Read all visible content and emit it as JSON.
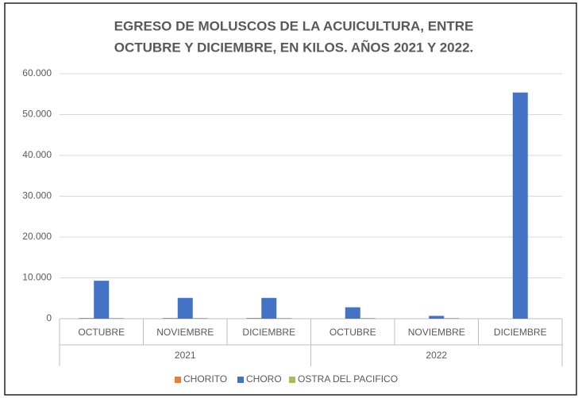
{
  "chart_data": {
    "type": "bar",
    "title": [
      "EGRESO DE MOLUSCOS DE LA ACUICULTURA, ENTRE",
      "OCTUBRE Y DICIEMBRE, EN KILOS. AÑOS 2021 Y 2022."
    ],
    "categories": [
      "OCTUBRE",
      "NOVIEMBRE",
      "DICIEMBRE",
      "OCTUBRE",
      "NOVIEMBRE",
      "DICIEMBRE"
    ],
    "groups": [
      "2021",
      "2022"
    ],
    "series": [
      {
        "name": "CHORITO",
        "color": "#ed7d31",
        "values": [
          200,
          200,
          200,
          0,
          0,
          0
        ]
      },
      {
        "name": "CHORO",
        "color": "#4472c4",
        "values": [
          9300,
          5100,
          5100,
          2800,
          700,
          55400
        ]
      },
      {
        "name": "OSTRA DEL PACIFICO",
        "color": "#9bc454",
        "values": [
          200,
          200,
          200,
          200,
          200,
          0
        ]
      }
    ],
    "ylim": [
      0,
      60000
    ],
    "yticks": [
      0,
      {
        "value": 10000,
        "label": "10.000"
      },
      {
        "value": 20000,
        "label": "20.000"
      },
      {
        "value": 30000,
        "label": "30.000"
      },
      {
        "value": 40000,
        "label": "40.000"
      },
      {
        "value": 50000,
        "label": "50.000"
      },
      {
        "value": 60000,
        "label": "60.000"
      }
    ],
    "grid": true,
    "legend": "bottom"
  }
}
